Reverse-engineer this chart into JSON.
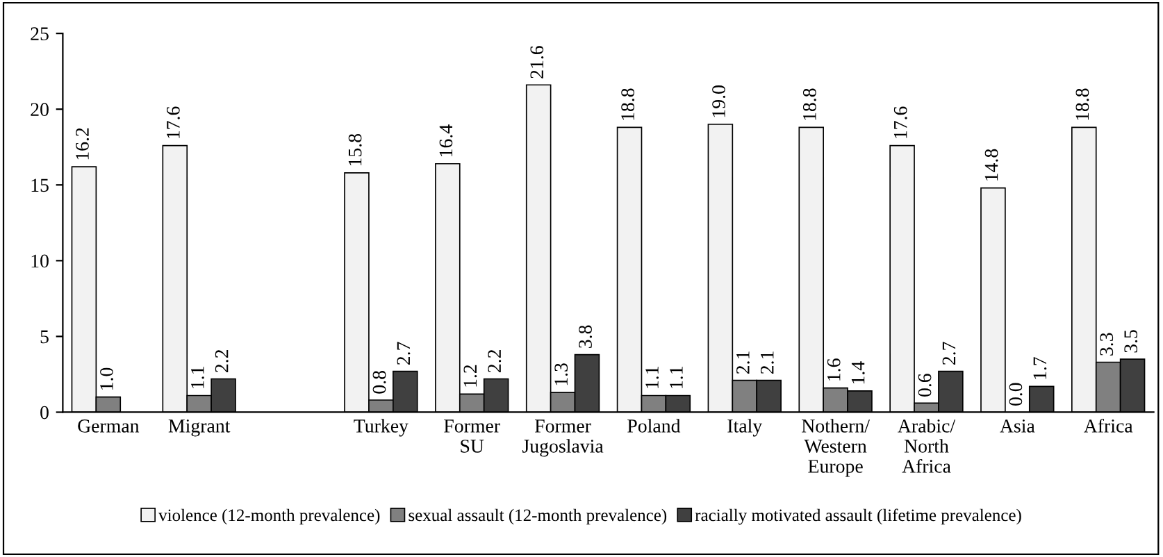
{
  "chart_data": {
    "type": "bar",
    "categories": [
      "German",
      "Migrant",
      null,
      "Turkey",
      "Former\nSU",
      "Former\nJugoslavia",
      "Poland",
      "Italy",
      "Nothern/\nWestern\nEurope",
      "Arabic/\nNorth\nAfrica",
      "Asia",
      "Africa"
    ],
    "series": [
      {
        "name": "violence (12-month prevalence)",
        "color": "#f2f2f2",
        "values": [
          16.2,
          17.6,
          null,
          15.8,
          16.4,
          21.6,
          18.8,
          19.0,
          18.8,
          17.6,
          14.8,
          18.8
        ],
        "value_labels": [
          "16.2",
          "17.6",
          null,
          "15.8",
          "16.4",
          "21.6",
          "18.8",
          "19.0",
          "18.8",
          "17.6",
          "14.8",
          "18.8"
        ]
      },
      {
        "name": "sexual assault (12-month prevalence)",
        "color": "#808080",
        "values": [
          1.0,
          1.1,
          null,
          0.8,
          1.2,
          1.3,
          1.1,
          2.1,
          1.6,
          0.6,
          0.0,
          3.3
        ],
        "value_labels": [
          "1.0",
          "1.1",
          null,
          "0.8",
          "1.2",
          "1.3",
          "1.1",
          "2.1",
          "1.6",
          "0.6",
          "0.0",
          "3.3"
        ]
      },
      {
        "name": "racially motivated assault (lifetime prevalence)",
        "color": "#404040",
        "values": [
          null,
          2.2,
          null,
          2.7,
          2.2,
          3.8,
          1.1,
          2.1,
          1.4,
          2.7,
          1.7,
          3.5
        ],
        "value_labels": [
          null,
          "2.2",
          null,
          "2.7",
          "2.2",
          "3.8",
          "1.1",
          "2.1",
          "1.4",
          "2.7",
          "1.7",
          "3.5"
        ]
      }
    ],
    "ylim": [
      0,
      25
    ],
    "yticks": [
      0,
      5,
      10,
      15,
      20,
      25
    ],
    "grid": false,
    "legend": "bottom"
  }
}
